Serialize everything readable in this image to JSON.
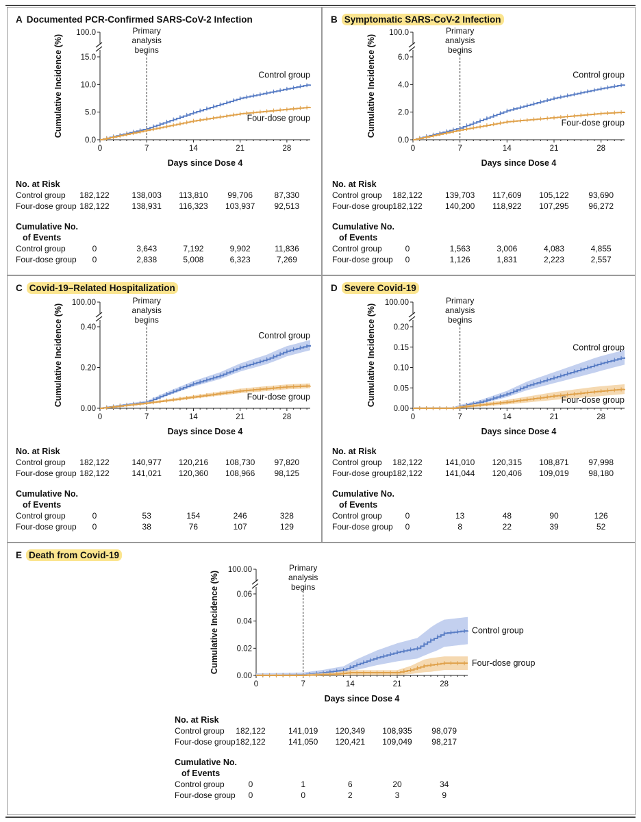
{
  "common": {
    "xlabel": "Days since Dose 4",
    "ylabel": "Cumulative Incidence (%)",
    "primary_label": [
      "Primary",
      "analysis",
      "begins"
    ],
    "control_label": "Control group",
    "four_label": "Four-dose group",
    "risk_head": "No. at Risk",
    "events_head": [
      "Cumulative No.",
      "of Events"
    ],
    "colors": {
      "control": "#5a7ec5",
      "four": "#e0a24c",
      "control_band": "#b8c8ec",
      "four_band": "#f3d2a3",
      "highlight": "#fbe58f"
    }
  },
  "panels": [
    {
      "letter": "A",
      "title": "Documented PCR-Confirmed SARS-CoV-2 Infection",
      "highlight": false,
      "chart_data": {
        "type": "line",
        "x_ticks": [
          0,
          7,
          14,
          21,
          28
        ],
        "y_ticks": [
          "0.0",
          "5.0",
          "10.0",
          "15.0"
        ],
        "y_ticks_values": [
          0,
          5,
          10,
          15
        ],
        "y_top_label": "100.0",
        "xlim": [
          0,
          31.5
        ],
        "ylim": [
          0,
          15
        ],
        "primary_analysis_day": 7,
        "confidence_bands": false,
        "series": [
          {
            "name": "Control group",
            "x": [
              0,
              7,
              14,
              21,
              28,
              31.5
            ],
            "y": [
              0,
              2.0,
              4.9,
              7.5,
              9.2,
              10.0
            ]
          },
          {
            "name": "Four-dose group",
            "x": [
              0,
              7,
              14,
              21,
              28,
              31.5
            ],
            "y": [
              0,
              1.7,
              3.4,
              4.7,
              5.5,
              5.9
            ]
          }
        ]
      },
      "table": {
        "risk": {
          "control": [
            "182,122",
            "138,003",
            "113,810",
            "99,706",
            "87,330"
          ],
          "four": [
            "182,122",
            "138,931",
            "116,323",
            "103,937",
            "92,513"
          ]
        },
        "events": {
          "control": [
            "0",
            "3,643",
            "7,192",
            "9,902",
            "11,836"
          ],
          "four": [
            "0",
            "2,838",
            "5,008",
            "6,323",
            "7,269"
          ]
        }
      }
    },
    {
      "letter": "B",
      "title": "Symptomatic SARS-CoV-2 Infection",
      "highlight": true,
      "chart_data": {
        "type": "line",
        "x_ticks": [
          0,
          7,
          14,
          21,
          28
        ],
        "y_ticks": [
          "0.0",
          "2.0",
          "4.0",
          "6.0"
        ],
        "y_ticks_values": [
          0,
          2,
          4,
          6
        ],
        "y_top_label": "100.0",
        "xlim": [
          0,
          31.5
        ],
        "ylim": [
          0,
          6
        ],
        "primary_analysis_day": 7,
        "confidence_bands": false,
        "series": [
          {
            "name": "Control group",
            "x": [
              0,
              7,
              14,
              21,
              28,
              31.5
            ],
            "y": [
              0,
              0.85,
              2.1,
              3.0,
              3.7,
              4.0
            ]
          },
          {
            "name": "Four-dose group",
            "x": [
              0,
              7,
              14,
              21,
              28,
              31.5
            ],
            "y": [
              0,
              0.7,
              1.3,
              1.6,
              1.9,
              2.0
            ]
          }
        ]
      },
      "table": {
        "risk": {
          "control": [
            "182,122",
            "139,703",
            "117,609",
            "105,122",
            "93,690"
          ],
          "four": [
            "182,122",
            "140,200",
            "118,922",
            "107,295",
            "96,272"
          ]
        },
        "events": {
          "control": [
            "0",
            "1,563",
            "3,006",
            "4,083",
            "4,855"
          ],
          "four": [
            "0",
            "1,126",
            "1,831",
            "2,223",
            "2,557"
          ]
        }
      }
    },
    {
      "letter": "C",
      "title": "Covid-19–Related Hospitalization",
      "highlight": true,
      "chart_data": {
        "type": "line",
        "x_ticks": [
          0,
          7,
          14,
          21,
          28
        ],
        "y_ticks": [
          "0.00",
          "0.20",
          "0.40"
        ],
        "y_ticks_values": [
          0,
          0.2,
          0.4
        ],
        "y_top_label": "100.00",
        "xlim": [
          0,
          31.5
        ],
        "ylim": [
          0,
          0.4
        ],
        "primary_analysis_day": 7,
        "confidence_bands": true,
        "series": [
          {
            "name": "Control group",
            "x": [
              0,
              7,
              10,
              14,
              18,
              21,
              25,
              28,
              31.5
            ],
            "y": [
              0,
              0.03,
              0.07,
              0.12,
              0.16,
              0.2,
              0.24,
              0.28,
              0.31
            ],
            "band": 0.025
          },
          {
            "name": "Four-dose group",
            "x": [
              0,
              7,
              14,
              21,
              28,
              31.5
            ],
            "y": [
              0,
              0.025,
              0.055,
              0.085,
              0.105,
              0.11
            ],
            "band": 0.012
          }
        ]
      },
      "table": {
        "risk": {
          "control": [
            "182,122",
            "140,977",
            "120,216",
            "108,730",
            "97,820"
          ],
          "four": [
            "182,122",
            "141,021",
            "120,360",
            "108,966",
            "98,125"
          ]
        },
        "events": {
          "control": [
            "0",
            "53",
            "154",
            "246",
            "328"
          ],
          "four": [
            "0",
            "38",
            "76",
            "107",
            "129"
          ]
        }
      }
    },
    {
      "letter": "D",
      "title": "Severe Covid-19",
      "highlight": true,
      "chart_data": {
        "type": "line",
        "x_ticks": [
          0,
          7,
          14,
          21,
          28
        ],
        "y_ticks": [
          "0.00",
          "0.05",
          "0.10",
          "0.15",
          "0.20"
        ],
        "y_ticks_values": [
          0,
          0.05,
          0.1,
          0.15,
          0.2
        ],
        "y_top_label": "100.00",
        "xlim": [
          0,
          31.5
        ],
        "ylim": [
          0,
          0.2
        ],
        "primary_analysis_day": 7,
        "confidence_bands": true,
        "series": [
          {
            "name": "Control group",
            "x": [
              0,
              6,
              7,
              10,
              14,
              17,
              21,
              25,
              28,
              31.5
            ],
            "y": [
              0,
              0,
              0.005,
              0.015,
              0.035,
              0.055,
              0.075,
              0.095,
              0.11,
              0.125
            ],
            "band": 0.018
          },
          {
            "name": "Four-dose group",
            "x": [
              0,
              6,
              7,
              10,
              14,
              21,
              28,
              31.5
            ],
            "y": [
              0,
              0,
              0.003,
              0.008,
              0.015,
              0.03,
              0.042,
              0.047
            ],
            "band": 0.012
          }
        ]
      },
      "table": {
        "risk": {
          "control": [
            "182,122",
            "141,010",
            "120,315",
            "108,871",
            "97,998"
          ],
          "four": [
            "182,122",
            "141,044",
            "120,406",
            "109,019",
            "98,180"
          ]
        },
        "events": {
          "control": [
            "0",
            "13",
            "48",
            "90",
            "126"
          ],
          "four": [
            "0",
            "8",
            "22",
            "39",
            "52"
          ]
        }
      }
    },
    {
      "letter": "E",
      "title": "Death from Covid-19",
      "highlight": true,
      "chart_data": {
        "type": "line",
        "x_ticks": [
          0,
          7,
          14,
          21,
          28
        ],
        "y_ticks": [
          "0.00",
          "0.02",
          "0.04",
          "0.06"
        ],
        "y_ticks_values": [
          0,
          0.02,
          0.04,
          0.06
        ],
        "y_top_label": "100.00",
        "xlim": [
          0,
          31.5
        ],
        "ylim": [
          0,
          0.06
        ],
        "primary_analysis_day": 7,
        "confidence_bands": true,
        "series": [
          {
            "name": "Control group",
            "x": [
              0,
              7,
              10,
              13,
              15,
              18,
              21,
              24,
              26,
              28,
              31.5
            ],
            "y": [
              0,
              0.0005,
              0.002,
              0.004,
              0.008,
              0.013,
              0.017,
              0.02,
              0.026,
              0.031,
              0.033
            ],
            "band": 0.01
          },
          {
            "name": "Four-dose group",
            "x": [
              0,
              7,
              12,
              14,
              21,
              23,
              25,
              28,
              31.5
            ],
            "y": [
              0,
              0,
              0.001,
              0.002,
              0.002,
              0.004,
              0.007,
              0.009,
              0.009
            ],
            "band": 0.005
          }
        ]
      },
      "table": {
        "risk": {
          "control": [
            "182,122",
            "141,019",
            "120,349",
            "108,935",
            "98,079"
          ],
          "four": [
            "182,122",
            "141,050",
            "120,421",
            "109,049",
            "98,217"
          ]
        },
        "events": {
          "control": [
            "0",
            "1",
            "6",
            "20",
            "34"
          ],
          "four": [
            "0",
            "0",
            "2",
            "3",
            "9"
          ]
        }
      }
    }
  ]
}
